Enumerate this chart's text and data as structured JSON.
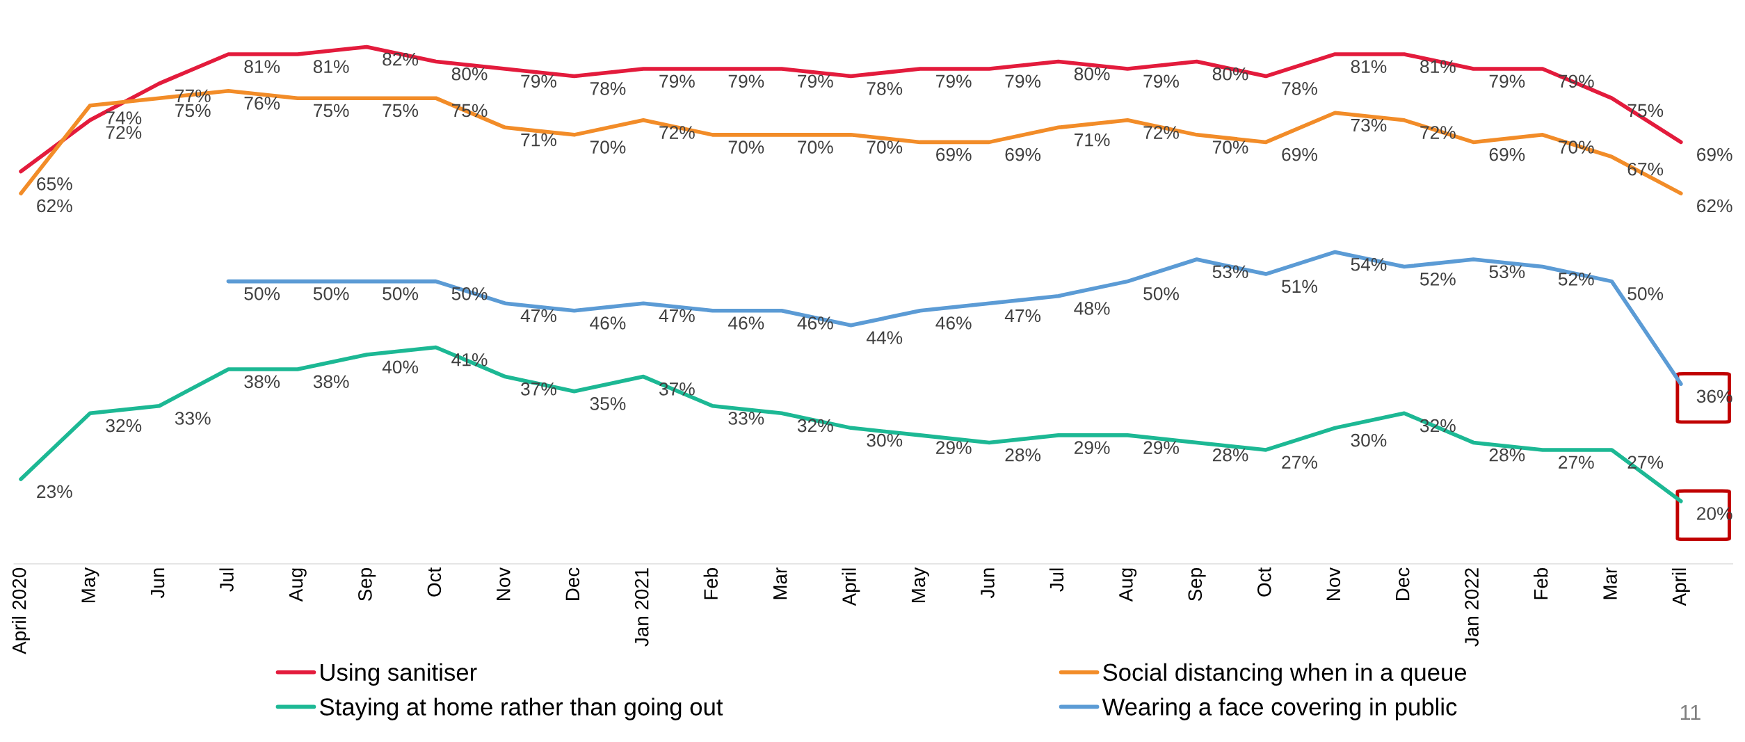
{
  "chart_data": {
    "type": "line",
    "categories": [
      "April 2020",
      "May",
      "Jun",
      "Jul",
      "Aug",
      "Sep",
      "Oct",
      "Nov",
      "Dec",
      "Jan 2021",
      "Feb",
      "Mar",
      "April",
      "May",
      "Jun",
      "Jul",
      "Aug",
      "Sep",
      "Oct",
      "Nov",
      "Dec",
      "Jan 2022",
      "Feb",
      "Mar",
      "April"
    ],
    "series": [
      {
        "name": "Using sanitiser",
        "color": "#e31b3c",
        "values": [
          65,
          72,
          77,
          81,
          81,
          82,
          80,
          79,
          78,
          79,
          79,
          79,
          78,
          79,
          79,
          80,
          79,
          80,
          78,
          81,
          81,
          79,
          79,
          75,
          69
        ],
        "value_labels": [
          "65%",
          "72%",
          "77%",
          "81%",
          "81%",
          "82%",
          "80%",
          "79%",
          "78%",
          "79%",
          "79%",
          "79%",
          "78%",
          "79%",
          "79%",
          "80%",
          "79%",
          "80%",
          "78%",
          "81%",
          "81%",
          "79%",
          "79%",
          "75%",
          "69%"
        ]
      },
      {
        "name": "Social distancing when in a queue",
        "color": "#f28c28",
        "values": [
          62,
          74,
          75,
          76,
          75,
          75,
          75,
          71,
          70,
          72,
          70,
          70,
          70,
          69,
          69,
          71,
          72,
          70,
          69,
          73,
          72,
          69,
          70,
          67,
          62
        ],
        "value_labels": [
          "62%",
          "74%",
          "75%",
          "76%",
          "75%",
          "75%",
          "75%",
          "71%",
          "70%",
          "72%",
          "70%",
          "70%",
          "70%",
          "69%",
          "69%",
          "71%",
          "72%",
          "70%",
          "69%",
          "73%",
          "72%",
          "69%",
          "70%",
          "67%",
          "62%"
        ]
      },
      {
        "name": "Staying at home rather than going out",
        "color": "#1cb894",
        "values": [
          23,
          32,
          33,
          38,
          38,
          40,
          41,
          37,
          35,
          37,
          33,
          32,
          30,
          29,
          28,
          29,
          29,
          28,
          27,
          30,
          32,
          28,
          27,
          27,
          20
        ],
        "value_labels": [
          "23%",
          "32%",
          "33%",
          "38%",
          "38%",
          "40%",
          "41%",
          "37%",
          "35%",
          "37%",
          "33%",
          "32%",
          "30%",
          "29%",
          "28%",
          "29%",
          "29%",
          "28%",
          "27%",
          "30%",
          "32%",
          "28%",
          "27%",
          "27%",
          "20%"
        ]
      },
      {
        "name": "Wearing a face covering in public",
        "color": "#5b9bd5",
        "values": [
          null,
          null,
          null,
          50,
          50,
          50,
          50,
          47,
          46,
          47,
          46,
          46,
          44,
          46,
          47,
          48,
          50,
          53,
          51,
          54,
          52,
          53,
          52,
          50,
          36
        ],
        "value_labels": [
          null,
          null,
          null,
          "50%",
          "50%",
          "50%",
          "50%",
          "47%",
          "46%",
          "47%",
          "46%",
          "46%",
          "44%",
          "46%",
          "47%",
          "48%",
          "50%",
          "53%",
          "51%",
          "54%",
          "52%",
          "53%",
          "52%",
          "50%",
          "36%"
        ]
      }
    ],
    "legend": "bottom",
    "grid": false,
    "tick_labels": "x",
    "line_style": "solid",
    "marker": "none",
    "annotations": [
      "11"
    ]
  }
}
